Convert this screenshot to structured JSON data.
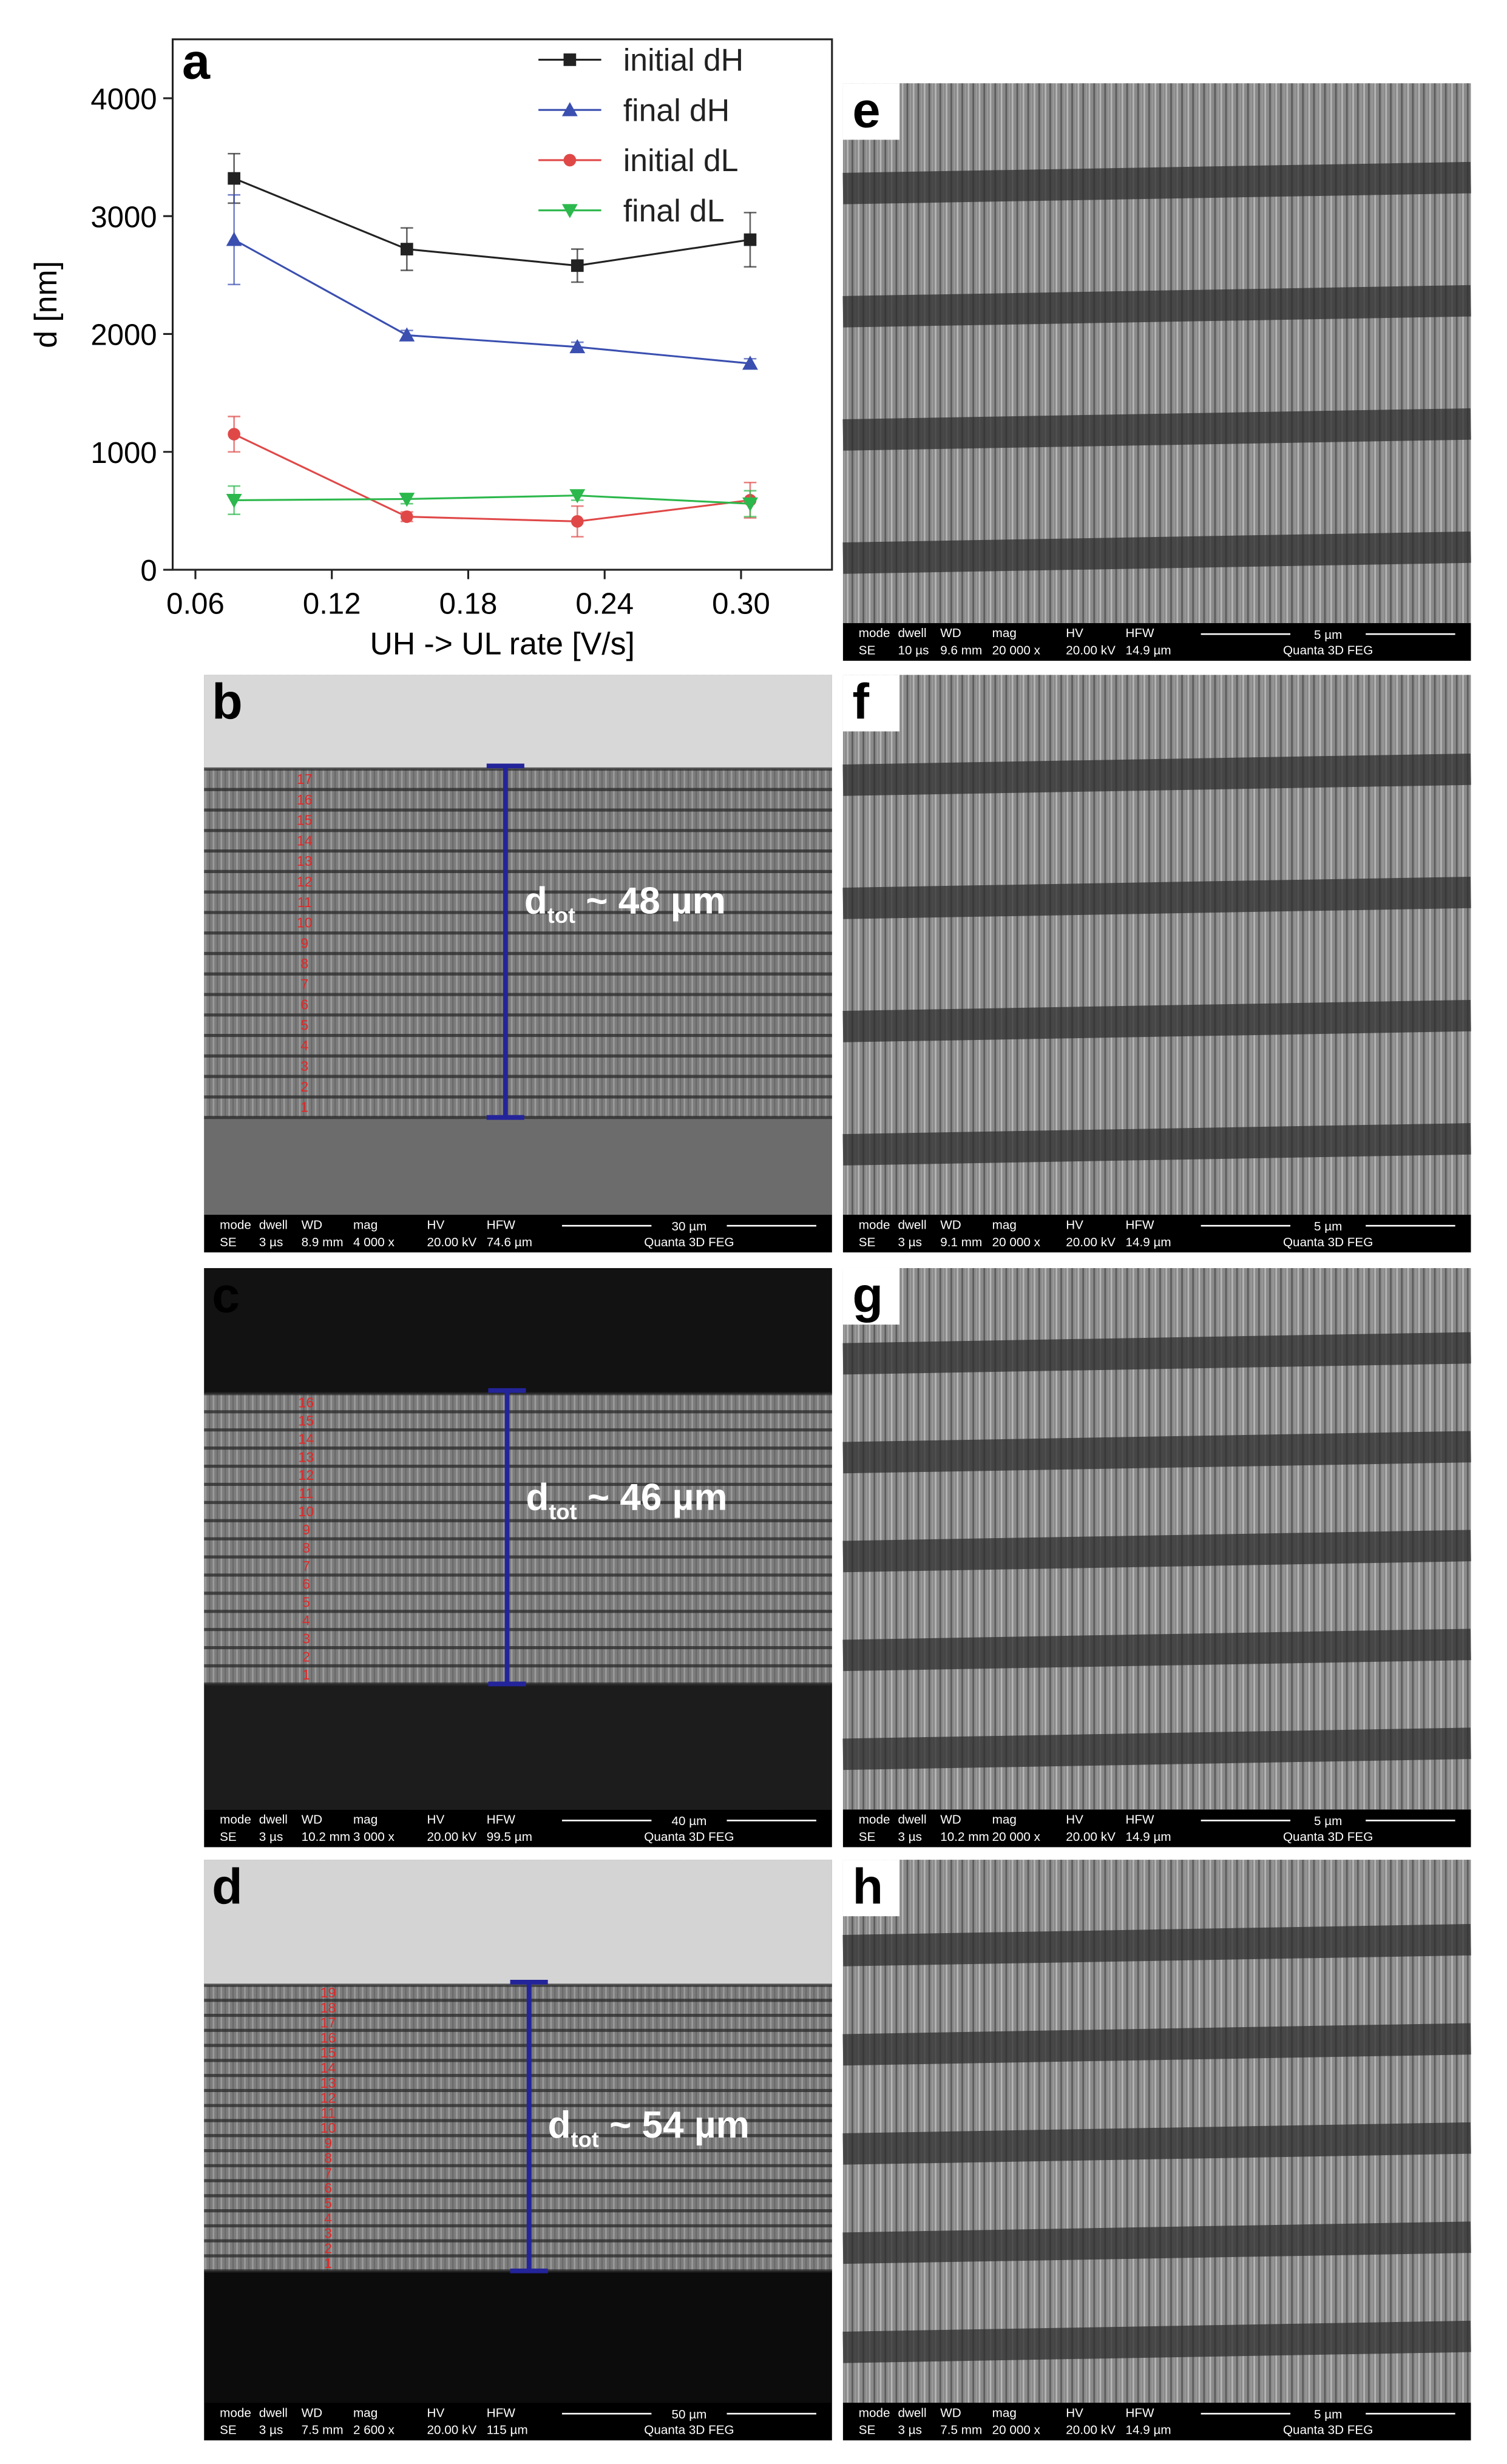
{
  "chart_data": {
    "type": "line",
    "panel_label": "a",
    "xlabel": "UH -> UL rate [V/s]",
    "ylabel": "d [nm]",
    "x": [
      0.077,
      0.153,
      0.228,
      0.304
    ],
    "xlim": [
      0.05,
      0.34
    ],
    "ylim": [
      0,
      4500
    ],
    "xticks": [
      0.06,
      0.12,
      0.18,
      0.24,
      {
        "value": 0.3,
        "label": "0.30"
      }
    ],
    "yticks": [
      0,
      1000,
      2000,
      3000,
      4000
    ],
    "legend": "upper right",
    "series": [
      {
        "name": "initial dH",
        "color": "#222222",
        "marker": "square",
        "values": [
          3320,
          2720,
          2580,
          2800
        ],
        "errors": [
          210,
          180,
          140,
          230
        ]
      },
      {
        "name": "final dH",
        "color": "#3a4fb0",
        "marker": "triangle-up",
        "values": [
          2800,
          1990,
          1890,
          1750
        ],
        "errors": [
          380,
          40,
          40,
          40
        ]
      },
      {
        "name": "initial dL",
        "color": "#e04848",
        "marker": "circle",
        "values": [
          1150,
          450,
          410,
          590
        ],
        "errors": [
          150,
          40,
          130,
          150
        ]
      },
      {
        "name": "final dL",
        "color": "#2cb84c",
        "marker": "triangle-down",
        "values": [
          590,
          600,
          630,
          560
        ],
        "errors": [
          120,
          40,
          40,
          110
        ]
      }
    ]
  },
  "info_headers": [
    "mode",
    "dwell",
    "WD",
    "mag",
    "HV",
    "HFW"
  ],
  "panels": [
    {
      "label": "b",
      "layers": [
        "1",
        "2",
        "3",
        "4",
        "5",
        "6",
        "7",
        "8",
        "9",
        "10",
        "11",
        "12",
        "13",
        "14",
        "15",
        "16",
        "17"
      ],
      "annotation": [
        "d",
        "tot",
        " ~ 48 µm"
      ],
      "info": [
        "SE",
        "3 µs",
        "8.9 mm",
        "4 000 x",
        "20.00 kV",
        "74.6 µm"
      ],
      "scale": "30 µm",
      "instrument": "Quanta 3D FEG"
    },
    {
      "label": "c",
      "layers": [
        "1",
        "2",
        "3",
        "4",
        "5",
        "6",
        "7",
        "8",
        "9",
        "10",
        "11",
        "12",
        "13",
        "14",
        "15",
        "16"
      ],
      "annotation": [
        "d",
        "tot",
        " ~ 46 µm"
      ],
      "info": [
        "SE",
        "3 µs",
        "10.2 mm",
        "3 000 x",
        "20.00 kV",
        "99.5 µm"
      ],
      "scale": "40 µm",
      "instrument": "Quanta 3D FEG"
    },
    {
      "label": "d",
      "layers": [
        "1",
        "2",
        "3",
        "4",
        "5",
        "6",
        "7",
        "8",
        "9",
        "10",
        "11",
        "12",
        "13",
        "14",
        "15",
        "16",
        "17",
        "18",
        "19"
      ],
      "annotation": [
        "d",
        "tot",
        " ~ 54 µm"
      ],
      "info": [
        "SE",
        "3 µs",
        "7.5 mm",
        "2 600 x",
        "20.00 kV",
        "115 µm"
      ],
      "scale": "50 µm",
      "instrument": "Quanta 3D FEG"
    },
    {
      "label": "e",
      "info": [
        "SE",
        "10 µs",
        "9.6 mm",
        "20 000 x",
        "20.00 kV",
        "14.9 µm"
      ],
      "scale": "5 µm",
      "instrument": "Quanta 3D FEG"
    },
    {
      "label": "f",
      "info": [
        "SE",
        "3 µs",
        "9.1 mm",
        "20 000 x",
        "20.00 kV",
        "14.9 µm"
      ],
      "scale": "5 µm",
      "instrument": "Quanta 3D FEG"
    },
    {
      "label": "g",
      "info": [
        "SE",
        "3 µs",
        "10.2 mm",
        "20 000 x",
        "20.00 kV",
        "14.9 µm"
      ],
      "scale": "5 µm",
      "instrument": "Quanta 3D FEG"
    },
    {
      "label": "h",
      "info": [
        "SE",
        "3 µs",
        "7.5 mm",
        "20 000 x",
        "20.00 kV",
        "14.9 µm"
      ],
      "scale": "5 µm",
      "instrument": "Quanta 3D FEG"
    }
  ]
}
